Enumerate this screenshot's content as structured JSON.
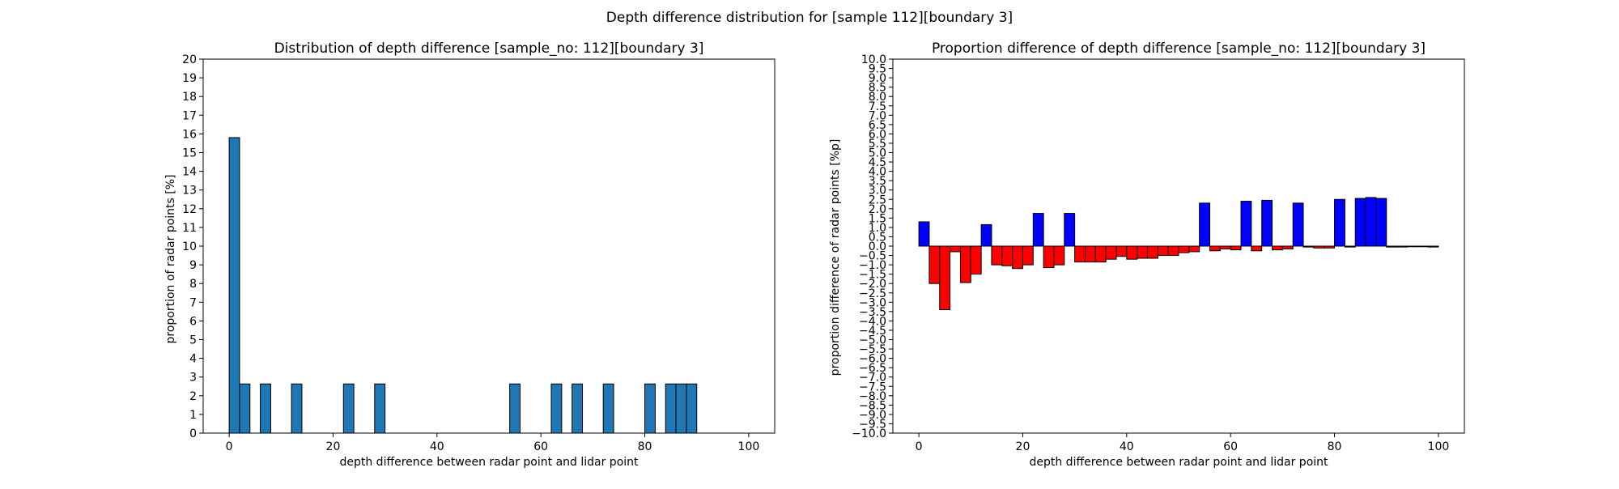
{
  "figure": {
    "suptitle": "Depth difference distribution for [sample 112][boundary 3]"
  },
  "chart_data": [
    {
      "type": "bar",
      "title": "Distribution of depth difference [sample_no: 112][boundary 3]",
      "xlabel": "depth difference between radar point and lidar point",
      "ylabel": "proportion of radar points [%]",
      "xlim": [
        -5,
        105
      ],
      "ylim": [
        0,
        20
      ],
      "xticks": [
        0,
        20,
        40,
        60,
        80,
        100
      ],
      "yticks": [
        0,
        1,
        2,
        3,
        4,
        5,
        6,
        7,
        8,
        9,
        10,
        11,
        12,
        13,
        14,
        15,
        16,
        17,
        18,
        19,
        20
      ],
      "bin_width": 2,
      "bar_color": "#1f77b4",
      "edge_color": "#000000",
      "grid": false,
      "bins": [
        {
          "x": 1,
          "value": 15.8
        },
        {
          "x": 3,
          "value": 2.63
        },
        {
          "x": 7,
          "value": 2.63
        },
        {
          "x": 13,
          "value": 2.63
        },
        {
          "x": 23,
          "value": 2.63
        },
        {
          "x": 29,
          "value": 2.63
        },
        {
          "x": 55,
          "value": 2.63
        },
        {
          "x": 63,
          "value": 2.63
        },
        {
          "x": 67,
          "value": 2.63
        },
        {
          "x": 73,
          "value": 2.63
        },
        {
          "x": 81,
          "value": 2.63
        },
        {
          "x": 85,
          "value": 2.63
        },
        {
          "x": 87,
          "value": 2.63
        },
        {
          "x": 89,
          "value": 2.63
        }
      ]
    },
    {
      "type": "bar",
      "title": "Proportion difference of depth difference [sample_no: 112][boundary 3]",
      "xlabel": "depth difference between radar point and lidar point",
      "ylabel": "proportion difference of radar points [%p]",
      "xlim": [
        -5,
        105
      ],
      "ylim": [
        -10,
        10
      ],
      "xticks": [
        0,
        20,
        40,
        60,
        80,
        100
      ],
      "yticks": [
        -10.0,
        -9.5,
        -9.0,
        -8.5,
        -8.0,
        -7.5,
        -7.0,
        -6.5,
        -6.0,
        -5.5,
        -5.0,
        -4.5,
        -4.0,
        -3.5,
        -3.0,
        -2.5,
        -2.0,
        -1.5,
        -1.0,
        -0.5,
        0.0,
        0.5,
        1.0,
        1.5,
        2.0,
        2.5,
        3.0,
        3.5,
        4.0,
        4.5,
        5.0,
        5.5,
        6.0,
        6.5,
        7.0,
        7.5,
        8.0,
        8.5,
        9.0,
        9.5,
        10.0
      ],
      "bin_width": 2,
      "positive_color": "#0000ff",
      "negative_color": "#ff0000",
      "edge_color": "#000000",
      "grid": false,
      "bins": [
        {
          "x": 1,
          "value": 1.3
        },
        {
          "x": 3,
          "value": -2.0
        },
        {
          "x": 5,
          "value": -3.4
        },
        {
          "x": 7,
          "value": -0.3
        },
        {
          "x": 9,
          "value": -1.95
        },
        {
          "x": 11,
          "value": -1.5
        },
        {
          "x": 13,
          "value": 1.15
        },
        {
          "x": 15,
          "value": -1.0
        },
        {
          "x": 17,
          "value": -1.05
        },
        {
          "x": 19,
          "value": -1.2
        },
        {
          "x": 21,
          "value": -1.0
        },
        {
          "x": 23,
          "value": 1.75
        },
        {
          "x": 25,
          "value": -1.15
        },
        {
          "x": 27,
          "value": -1.0
        },
        {
          "x": 29,
          "value": 1.75
        },
        {
          "x": 31,
          "value": -0.85
        },
        {
          "x": 33,
          "value": -0.85
        },
        {
          "x": 35,
          "value": -0.85
        },
        {
          "x": 37,
          "value": -0.7
        },
        {
          "x": 39,
          "value": -0.55
        },
        {
          "x": 41,
          "value": -0.7
        },
        {
          "x": 43,
          "value": -0.65
        },
        {
          "x": 45,
          "value": -0.65
        },
        {
          "x": 47,
          "value": -0.5
        },
        {
          "x": 49,
          "value": -0.5
        },
        {
          "x": 51,
          "value": -0.35
        },
        {
          "x": 53,
          "value": -0.3
        },
        {
          "x": 55,
          "value": 2.3
        },
        {
          "x": 57,
          "value": -0.25
        },
        {
          "x": 59,
          "value": -0.15
        },
        {
          "x": 61,
          "value": -0.2
        },
        {
          "x": 63,
          "value": 2.4
        },
        {
          "x": 65,
          "value": -0.25
        },
        {
          "x": 67,
          "value": 2.45
        },
        {
          "x": 69,
          "value": -0.2
        },
        {
          "x": 71,
          "value": -0.15
        },
        {
          "x": 73,
          "value": 2.3
        },
        {
          "x": 75,
          "value": -0.05
        },
        {
          "x": 77,
          "value": -0.1
        },
        {
          "x": 79,
          "value": -0.1
        },
        {
          "x": 81,
          "value": 2.5
        },
        {
          "x": 83,
          "value": -0.05
        },
        {
          "x": 85,
          "value": 2.55
        },
        {
          "x": 87,
          "value": 2.6
        },
        {
          "x": 89,
          "value": 2.55
        },
        {
          "x": 91,
          "value": -0.05
        },
        {
          "x": 93,
          "value": -0.05
        },
        {
          "x": 95,
          "value": -0.03
        },
        {
          "x": 97,
          "value": -0.03
        },
        {
          "x": 99,
          "value": -0.05
        }
      ]
    }
  ]
}
